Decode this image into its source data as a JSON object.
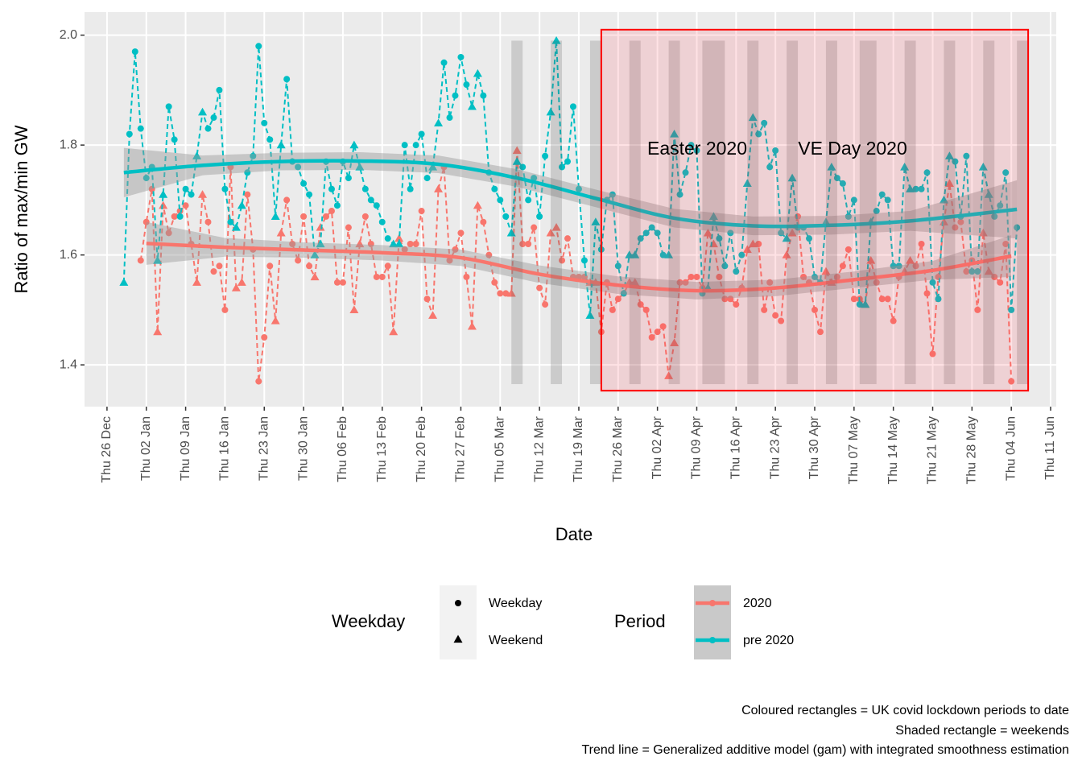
{
  "chart_data": {
    "type": "line",
    "x_label": "Date",
    "y_label": "Ratio of max/min GW",
    "xlim": [
      "22 Dec",
      "12 Jun"
    ],
    "xticks": [
      "Thu 26 Dec",
      "Thu 02 Jan",
      "Thu 09 Jan",
      "Thu 16 Jan",
      "Thu 23 Jan",
      "Thu 30 Jan",
      "Thu 06 Feb",
      "Thu 13 Feb",
      "Thu 20 Feb",
      "Thu 27 Feb",
      "Thu 05 Mar",
      "Thu 12 Mar",
      "Thu 19 Mar",
      "Thu 26 Mar",
      "Thu 02 Apr",
      "Thu 09 Apr",
      "Thu 16 Apr",
      "Thu 23 Apr",
      "Thu 30 Apr",
      "Thu 07 May",
      "Thu 14 May",
      "Thu 21 May",
      "Thu 28 May",
      "Thu 04 Jun",
      "Thu 11 Jun"
    ],
    "ylim": [
      1.324,
      2.042
    ],
    "yticks": [
      1.4,
      1.6,
      1.8,
      {
        "value": 2,
        "label": "2.0"
      }
    ],
    "grid": true,
    "x": [
      "29 Dec",
      "30 Dec",
      "31 Dec",
      "01 Jan",
      "02 Jan",
      "03 Jan",
      "04 Jan",
      "05 Jan",
      "06 Jan",
      "07 Jan",
      "08 Jan",
      "09 Jan",
      "10 Jan",
      "11 Jan",
      "12 Jan",
      "13 Jan",
      "14 Jan",
      "15 Jan",
      "16 Jan",
      "17 Jan",
      "18 Jan",
      "19 Jan",
      "20 Jan",
      "21 Jan",
      "22 Jan",
      "23 Jan",
      "24 Jan",
      "25 Jan",
      "26 Jan",
      "27 Jan",
      "28 Jan",
      "29 Jan",
      "30 Jan",
      "31 Jan",
      "01 Feb",
      "02 Feb",
      "03 Feb",
      "04 Feb",
      "05 Feb",
      "06 Feb",
      "07 Feb",
      "08 Feb",
      "09 Feb",
      "10 Feb",
      "11 Feb",
      "12 Feb",
      "13 Feb",
      "14 Feb",
      "15 Feb",
      "16 Feb",
      "17 Feb",
      "18 Feb",
      "19 Feb",
      "20 Feb",
      "21 Feb",
      "22 Feb",
      "23 Feb",
      "24 Feb",
      "25 Feb",
      "26 Feb",
      "27 Feb",
      "28 Feb",
      "29 Feb",
      "01 Mar",
      "02 Mar",
      "03 Mar",
      "04 Mar",
      "05 Mar",
      "06 Mar",
      "07 Mar",
      "08 Mar",
      "09 Mar",
      "10 Mar",
      "11 Mar",
      "12 Mar",
      "13 Mar",
      "14 Mar",
      "15 Mar",
      "16 Mar",
      "17 Mar",
      "18 Mar",
      "19 Mar",
      "20 Mar",
      "21 Mar",
      "22 Mar",
      "23 Mar",
      "24 Mar",
      "25 Mar",
      "26 Mar",
      "27 Mar",
      "28 Mar",
      "29 Mar",
      "30 Mar",
      "31 Mar",
      "01 Apr",
      "02 Apr",
      "03 Apr",
      "04 Apr",
      "05 Apr",
      "06 Apr",
      "07 Apr",
      "08 Apr",
      "09 Apr",
      "10 Apr",
      "11 Apr",
      "12 Apr",
      "13 Apr",
      "14 Apr",
      "15 Apr",
      "16 Apr",
      "17 Apr",
      "18 Apr",
      "19 Apr",
      "20 Apr",
      "21 Apr",
      "22 Apr",
      "23 Apr",
      "24 Apr",
      "25 Apr",
      "26 Apr",
      "27 Apr",
      "28 Apr",
      "29 Apr",
      "30 Apr",
      "01 May",
      "02 May",
      "03 May",
      "04 May",
      "05 May",
      "06 May",
      "07 May",
      "08 May",
      "09 May",
      "10 May",
      "11 May",
      "12 May",
      "13 May",
      "14 May",
      "15 May",
      "16 May",
      "17 May",
      "18 May",
      "19 May",
      "20 May",
      "21 May",
      "22 May",
      "23 May",
      "24 May",
      "25 May",
      "26 May",
      "27 May",
      "28 May",
      "29 May",
      "30 May",
      "31 May",
      "01 Jun",
      "02 Jun",
      "03 Jun",
      "04 Jun",
      "05 Jun"
    ],
    "series": [
      {
        "name": "2020",
        "color": "#F8766D",
        "values": [
          null,
          null,
          null,
          1.59,
          1.66,
          1.72,
          1.46,
          1.69,
          1.64,
          1.67,
          1.68,
          1.69,
          1.62,
          1.55,
          1.71,
          1.66,
          1.57,
          1.58,
          1.5,
          1.76,
          1.54,
          1.55,
          1.71,
          1.61,
          1.37,
          1.45,
          1.58,
          1.48,
          1.64,
          1.7,
          1.62,
          1.59,
          1.67,
          1.58,
          1.56,
          1.65,
          1.67,
          1.68,
          1.55,
          1.55,
          1.65,
          1.5,
          1.62,
          1.67,
          1.62,
          1.56,
          1.56,
          1.58,
          1.46,
          1.63,
          1.61,
          1.62,
          1.62,
          1.68,
          1.52,
          1.49,
          1.72,
          1.76,
          1.59,
          1.61,
          1.64,
          1.56,
          1.47,
          1.69,
          1.66,
          1.6,
          1.55,
          1.53,
          1.53,
          1.53,
          1.79,
          1.62,
          1.62,
          1.65,
          1.54,
          1.51,
          1.64,
          1.65,
          1.59,
          1.63,
          1.56,
          1.56,
          1.56,
          1.55,
          1.55,
          1.46,
          1.55,
          1.5,
          1.52,
          1.53,
          1.55,
          1.55,
          1.51,
          1.5,
          1.45,
          1.46,
          1.47,
          1.38,
          1.44,
          1.55,
          1.55,
          1.56,
          1.56,
          1.54,
          1.64,
          1.62,
          1.56,
          1.52,
          1.52,
          1.51,
          1.54,
          1.61,
          1.62,
          1.62,
          1.5,
          1.55,
          1.49,
          1.48,
          1.6,
          1.64,
          1.67,
          1.56,
          1.55,
          1.5,
          1.46,
          1.57,
          1.55,
          1.56,
          1.58,
          1.61,
          1.52,
          1.52,
          1.51,
          1.59,
          1.55,
          1.52,
          1.52,
          1.48,
          1.56,
          1.57,
          1.59,
          1.58,
          1.62,
          1.53,
          1.42,
          1.56,
          1.66,
          1.73,
          1.65,
          1.66,
          1.57,
          1.59,
          1.5,
          1.64,
          1.57,
          1.56,
          1.55,
          1.62,
          1.37,
          null
        ],
        "trend": {
          "x": [
            "02 Jan",
            "16 Jan",
            "30 Jan",
            "13 Feb",
            "27 Feb",
            "12 Mar",
            "26 Mar",
            "09 Apr",
            "23 Apr",
            "07 May",
            "21 May",
            "04 Jun"
          ],
          "values": [
            1.621,
            1.614,
            1.609,
            1.604,
            1.595,
            1.565,
            1.545,
            1.535,
            1.54,
            1.555,
            1.572,
            1.598
          ],
          "lower": [
            1.582,
            1.597,
            1.595,
            1.59,
            1.58,
            1.549,
            1.529,
            1.519,
            1.525,
            1.54,
            1.555,
            1.56
          ],
          "upper": [
            1.66,
            1.631,
            1.623,
            1.618,
            1.61,
            1.581,
            1.561,
            1.551,
            1.555,
            1.57,
            1.589,
            1.636
          ]
        }
      },
      {
        "name": "pre 2020",
        "color": "#00BFC4",
        "values": [
          1.55,
          1.82,
          1.97,
          1.83,
          1.74,
          1.76,
          1.59,
          1.71,
          1.87,
          1.81,
          1.67,
          1.72,
          1.71,
          1.78,
          1.86,
          1.83,
          1.85,
          1.9,
          1.72,
          1.66,
          1.65,
          1.69,
          1.75,
          1.78,
          1.98,
          1.84,
          1.81,
          1.67,
          1.8,
          1.92,
          1.77,
          1.76,
          1.73,
          1.71,
          1.6,
          1.62,
          1.77,
          1.72,
          1.69,
          1.77,
          1.74,
          1.8,
          1.76,
          1.72,
          1.7,
          1.69,
          1.66,
          1.63,
          1.62,
          1.62,
          1.8,
          1.72,
          1.8,
          1.82,
          1.74,
          1.76,
          1.84,
          1.95,
          1.85,
          1.89,
          1.96,
          1.91,
          1.87,
          1.93,
          1.89,
          1.75,
          1.72,
          1.7,
          1.67,
          1.64,
          1.77,
          1.76,
          1.7,
          1.74,
          1.67,
          1.78,
          1.86,
          1.99,
          1.76,
          1.77,
          1.87,
          1.72,
          1.59,
          1.49,
          1.66,
          1.61,
          1.7,
          1.71,
          1.58,
          1.53,
          1.6,
          1.6,
          1.63,
          1.64,
          1.65,
          1.64,
          1.6,
          1.6,
          1.82,
          1.71,
          1.75,
          1.8,
          1.79,
          1.53,
          1.54,
          1.67,
          1.63,
          1.58,
          1.64,
          1.57,
          1.6,
          1.73,
          1.85,
          1.82,
          1.84,
          1.76,
          1.79,
          1.64,
          1.63,
          1.74,
          1.65,
          1.65,
          1.63,
          1.56,
          1.55,
          1.66,
          1.76,
          1.74,
          1.73,
          1.67,
          1.7,
          1.51,
          1.51,
          1.66,
          1.68,
          1.71,
          1.7,
          1.58,
          1.58,
          1.76,
          1.72,
          1.72,
          1.72,
          1.75,
          1.55,
          1.52,
          1.7,
          1.78,
          1.77,
          1.67,
          1.78,
          1.57,
          1.57,
          1.76,
          1.71,
          1.67,
          1.69,
          1.75,
          1.5,
          1.65
        ],
        "trend": {
          "x": [
            "29 Dec",
            "12 Jan",
            "26 Jan",
            "09 Feb",
            "23 Feb",
            "08 Mar",
            "22 Mar",
            "05 Apr",
            "19 Apr",
            "03 May",
            "17 May",
            "05 Jun"
          ],
          "values": [
            1.75,
            1.763,
            1.77,
            1.771,
            1.765,
            1.74,
            1.703,
            1.667,
            1.653,
            1.654,
            1.662,
            1.683
          ],
          "lower": [
            1.705,
            1.745,
            1.754,
            1.755,
            1.749,
            1.724,
            1.687,
            1.65,
            1.636,
            1.637,
            1.644,
            1.63
          ],
          "upper": [
            1.795,
            1.781,
            1.786,
            1.787,
            1.781,
            1.756,
            1.719,
            1.684,
            1.67,
            1.671,
            1.68,
            1.736
          ]
        }
      }
    ],
    "shape_legend": {
      "title": "Weekday",
      "labels": [
        "Weekday",
        "Weekend"
      ]
    },
    "color_legend_title": "Period",
    "weekends": {
      "ylim": [
        1.365,
        1.99
      ],
      "periods": [
        [
          "07 Mar",
          "09 Mar"
        ],
        [
          "14 Mar",
          "16 Mar"
        ],
        [
          "21 Mar",
          "23 Mar"
        ],
        [
          "28 Mar",
          "30 Mar"
        ],
        [
          "04 Apr",
          "06 Apr"
        ],
        [
          "10 Apr",
          "14 Apr"
        ],
        [
          "18 Apr",
          "20 Apr"
        ],
        [
          "25 Apr",
          "27 Apr"
        ],
        [
          "02 May",
          "04 May"
        ],
        [
          "08 May",
          "11 May"
        ],
        [
          "16 May",
          "18 May"
        ],
        [
          "23 May",
          "25 May"
        ],
        [
          "30 May",
          "01 Jun"
        ],
        [
          "05 Jun",
          "07 Jun"
        ]
      ]
    },
    "lockdown": {
      "start": "23 Mar",
      "end": "07 Jun",
      "ylim": [
        1.353,
        2.01
      ]
    },
    "annotations": [
      "Easter 2020",
      "VE Day 2020"
    ],
    "caption": [
      "Coloured rectangles = UK covid lockdown periods to date",
      "Shaded rectangle = weekends",
      "Trend line = Generalized additive model (gam) with integrated smoothness estimation"
    ]
  }
}
